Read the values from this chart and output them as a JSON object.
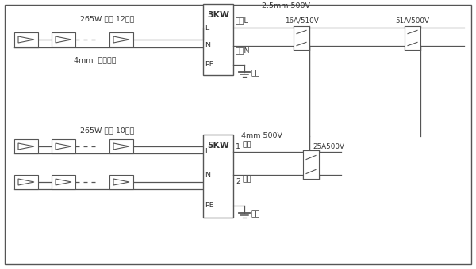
{
  "lc": "#555555",
  "tc": "#333333",
  "fs": 6.8,
  "top_label_265w": "265W 组件 12串联",
  "top_label_4mm": "4mm  光伏电缆",
  "bot_label_265w": "265W 组件 10串联",
  "inv1_label": "3KW",
  "inv2_label": "5KW",
  "cable1_label": "2.5mm 500V",
  "cable2_label": "4mm 500V",
  "brk1_label": "16A/510V",
  "brk2_label": "51A/500V",
  "brk3_label": "25A500V",
  "lineL1": "相线L",
  "lineN1": "零线N",
  "lineL2": "相线",
  "lineN2": "零线",
  "ground_label": "地线",
  "L": "L",
  "N": "N",
  "PE": "PE",
  "lbl1": "1",
  "lbl2": "2"
}
